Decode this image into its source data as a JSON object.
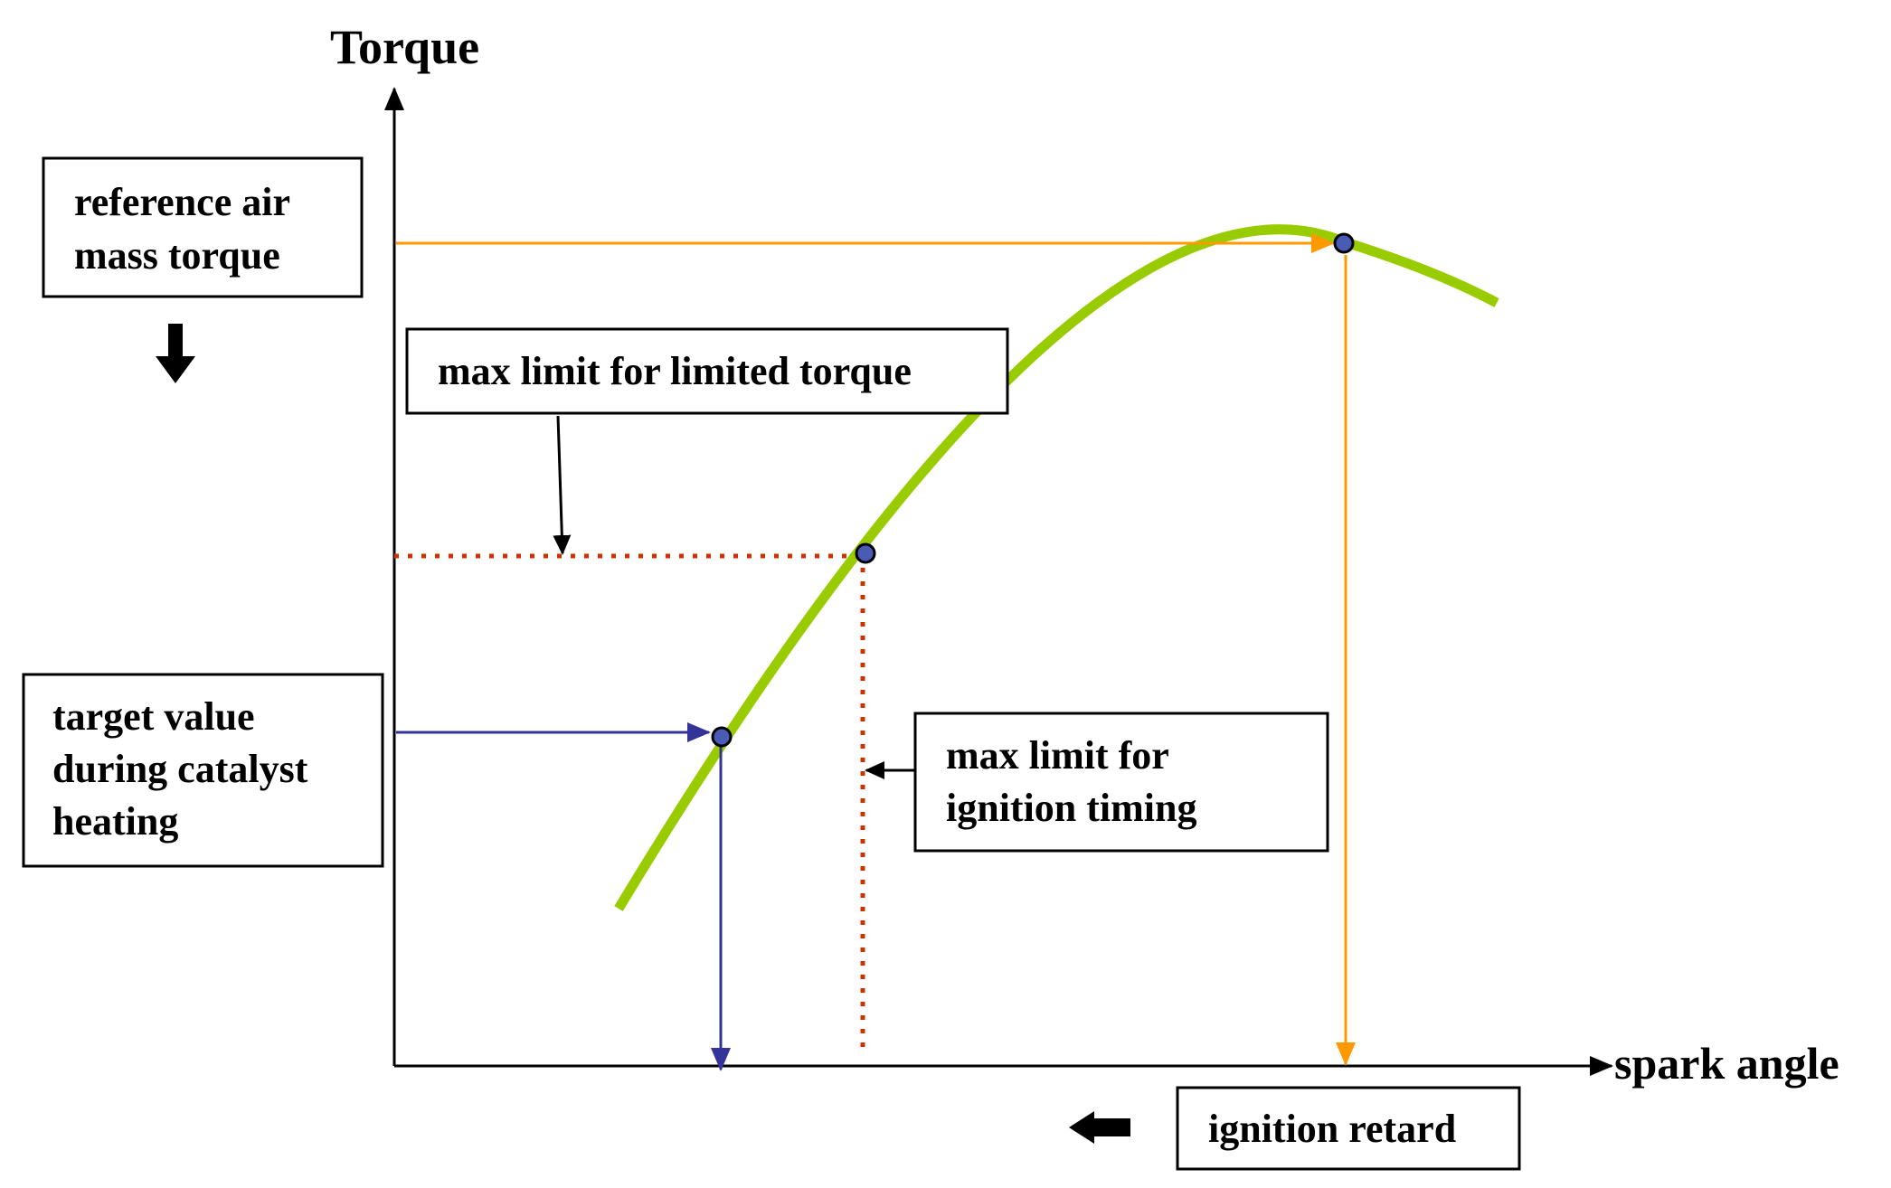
{
  "axes": {
    "y_label": "Torque",
    "x_label": "spark angle"
  },
  "boxes": {
    "reference": {
      "line1": "reference air",
      "line2": "mass torque"
    },
    "max_limited_torque": {
      "line1": "max limit for limited torque"
    },
    "target": {
      "line1": "target value",
      "line2": "during catalyst",
      "line3": "heating"
    },
    "max_ignition": {
      "line1": "max limit for",
      "line2": "ignition timing"
    },
    "ignition_retard": {
      "line1": "ignition retard"
    }
  },
  "colors": {
    "curve": "#99cc00",
    "reference_arrow": "#ff9900",
    "limit_dotted": "#cc3300",
    "target_arrow": "#333399",
    "point_fill": "#4a5bb5"
  },
  "icons": {
    "down_arrow": "arrow-down-icon",
    "left_arrow": "arrow-left-icon"
  }
}
